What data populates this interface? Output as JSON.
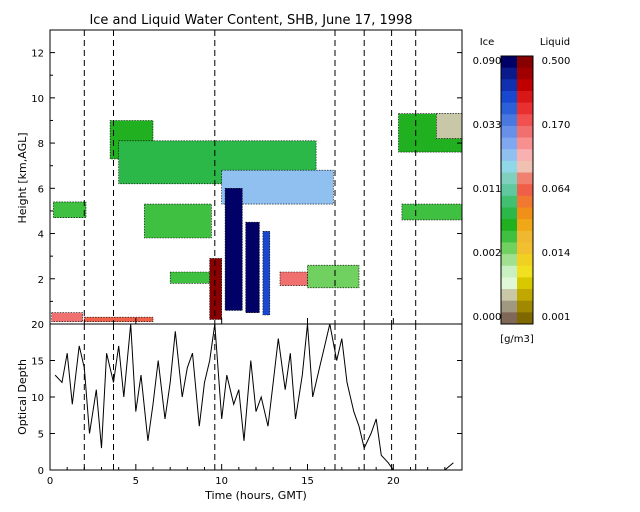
{
  "chart_data": [
    {
      "type": "heatmap",
      "title": "Ice and Liquid Water Content, SHB, June 17, 1998",
      "xlabel": "",
      "ylabel": "Height [km,AGL]",
      "xlim": [
        0,
        24
      ],
      "ylim": [
        0,
        13
      ],
      "x_ticks": [
        "0",
        "5",
        "10",
        "15",
        "20"
      ],
      "y_ticks": [
        "2",
        "4",
        "6",
        "8",
        "10",
        "12"
      ],
      "dashed_time_markers": [
        2.0,
        3.7,
        9.6,
        16.6,
        18.3,
        19.9,
        21.3
      ],
      "regions": [
        {
          "kind": "liquid",
          "x": [
            0.1,
            1.9
          ],
          "y": [
            0.1,
            0.5
          ],
          "value": 0.17
        },
        {
          "kind": "liquid",
          "x": [
            2.0,
            6.0
          ],
          "y": [
            0.1,
            0.3
          ],
          "value": 0.064
        },
        {
          "kind": "ice",
          "x": [
            0.2,
            2.1
          ],
          "y": [
            4.7,
            5.4
          ],
          "value": 0.005
        },
        {
          "kind": "ice",
          "x": [
            3.5,
            6.0
          ],
          "y": [
            7.3,
            9.0
          ],
          "value": 0.006
        },
        {
          "kind": "ice",
          "x": [
            4.0,
            15.5
          ],
          "y": [
            6.2,
            8.1
          ],
          "value": 0.007
        },
        {
          "kind": "ice",
          "x": [
            5.5,
            9.4
          ],
          "y": [
            3.8,
            5.3
          ],
          "value": 0.004
        },
        {
          "kind": "ice",
          "x": [
            10.0,
            16.5
          ],
          "y": [
            5.3,
            6.8
          ],
          "value": 0.025
        },
        {
          "kind": "ice",
          "x": [
            10.2,
            11.2
          ],
          "y": [
            0.6,
            6.0
          ],
          "value": 0.09
        },
        {
          "kind": "ice",
          "x": [
            11.4,
            12.2
          ],
          "y": [
            0.5,
            4.5
          ],
          "value": 0.09
        },
        {
          "kind": "ice",
          "x": [
            12.4,
            12.8
          ],
          "y": [
            0.4,
            4.1
          ],
          "value": 0.06
        },
        {
          "kind": "ice",
          "x": [
            7.0,
            9.3
          ],
          "y": [
            1.8,
            2.3
          ],
          "value": 0.004
        },
        {
          "kind": "liquid",
          "x": [
            9.3,
            10.0
          ],
          "y": [
            0.2,
            2.9
          ],
          "value": 0.5
        },
        {
          "kind": "liquid",
          "x": [
            13.4,
            15.0
          ],
          "y": [
            1.7,
            2.3
          ],
          "value": 0.17
        },
        {
          "kind": "ice",
          "x": [
            15.0,
            18.0
          ],
          "y": [
            1.6,
            2.6
          ],
          "value": 0.003
        },
        {
          "kind": "ice",
          "x": [
            20.5,
            24.0
          ],
          "y": [
            4.6,
            5.3
          ],
          "value": 0.005
        },
        {
          "kind": "ice",
          "x": [
            20.3,
            24.0
          ],
          "y": [
            7.6,
            9.3
          ],
          "value": 0.006
        },
        {
          "kind": "ice",
          "x": [
            22.5,
            24.0
          ],
          "y": [
            8.2,
            9.3
          ],
          "value": 0.0008
        }
      ]
    },
    {
      "type": "line",
      "title": "",
      "xlabel": "Time (hours, GMT)",
      "ylabel": "Optical Depth",
      "xlim": [
        0,
        24
      ],
      "ylim": [
        0,
        20
      ],
      "x_ticks": [
        "0",
        "5",
        "10",
        "15",
        "20"
      ],
      "y_ticks": [
        "0",
        "5",
        "10",
        "15",
        "20"
      ],
      "series": [
        {
          "x": [
            0.3,
            0.7,
            1.0,
            1.3,
            1.7,
            2.0,
            2.3,
            2.7,
            3.0,
            3.3,
            3.7,
            4.0,
            4.3,
            4.7,
            5.0,
            5.3,
            5.7,
            6.0,
            6.3,
            6.7,
            7.0,
            7.3,
            7.7,
            8.0,
            8.3,
            8.7,
            9.0,
            9.3,
            9.6,
            10.0,
            10.3,
            10.7,
            11.0,
            11.3,
            11.7,
            12.0,
            12.3,
            12.7,
            13.0,
            13.3,
            13.7,
            14.0,
            14.3,
            14.7,
            15.0,
            15.3,
            15.7,
            16.0,
            16.3,
            16.7,
            17.0,
            17.3,
            17.7,
            18.0,
            18.3,
            18.7,
            19.0,
            19.3,
            19.7,
            20.0,
            20.5,
            21.0,
            21.5,
            22.0,
            22.5,
            23.0,
            23.5
          ],
          "y": [
            13,
            12,
            16,
            9,
            17,
            14,
            5,
            11,
            3,
            16,
            12,
            17,
            10,
            20,
            8,
            13,
            4,
            9,
            15,
            7,
            12,
            19,
            10,
            14,
            16,
            6,
            12,
            15,
            20,
            7,
            13,
            9,
            11,
            4,
            15,
            8,
            10,
            6,
            12,
            18,
            11,
            16,
            7,
            13,
            20,
            10,
            14,
            17,
            20,
            15,
            18,
            12,
            8,
            6,
            3,
            5,
            7,
            2,
            1,
            0,
            0,
            0,
            0,
            0,
            0,
            0,
            1
          ]
        }
      ]
    }
  ],
  "colorbar": {
    "ice_label": "Ice",
    "liquid_label": "Liquid",
    "units": "[g/m3]",
    "ice_ticks": [
      "0.090",
      "0.033",
      "0.011",
      "0.002",
      "0.000"
    ],
    "liquid_ticks": [
      "0.500",
      "0.170",
      "0.064",
      "0.014",
      "0.001"
    ],
    "colors_top_to_bottom": [
      "#000066",
      "#0a1a8a",
      "#1030b0",
      "#1848d0",
      "#2c60d8",
      "#4878e0",
      "#6890e8",
      "#80a8f0",
      "#90c0f0",
      "#90d8e8",
      "#80d0c0",
      "#60c8a0",
      "#40c070",
      "#2cb848",
      "#20b020",
      "#40c040",
      "#70d060",
      "#a0e090",
      "#c8f0c0",
      "#e0f8d8",
      "#c8c8a8",
      "#a09880",
      "#806858"
    ],
    "liquid_colors_top_to_bottom": [
      "#880000",
      "#a00000",
      "#c00000",
      "#d81818",
      "#e83030",
      "#f05050",
      "#f07070",
      "#f89090",
      "#f8b0b0",
      "#f0c0b0",
      "#f08070",
      "#f06048",
      "#f07830",
      "#f09018",
      "#f0a818",
      "#f0b830",
      "#f0c030",
      "#f0d020",
      "#f0e020",
      "#d8c800",
      "#c0a800",
      "#a08800",
      "#806800"
    ]
  }
}
